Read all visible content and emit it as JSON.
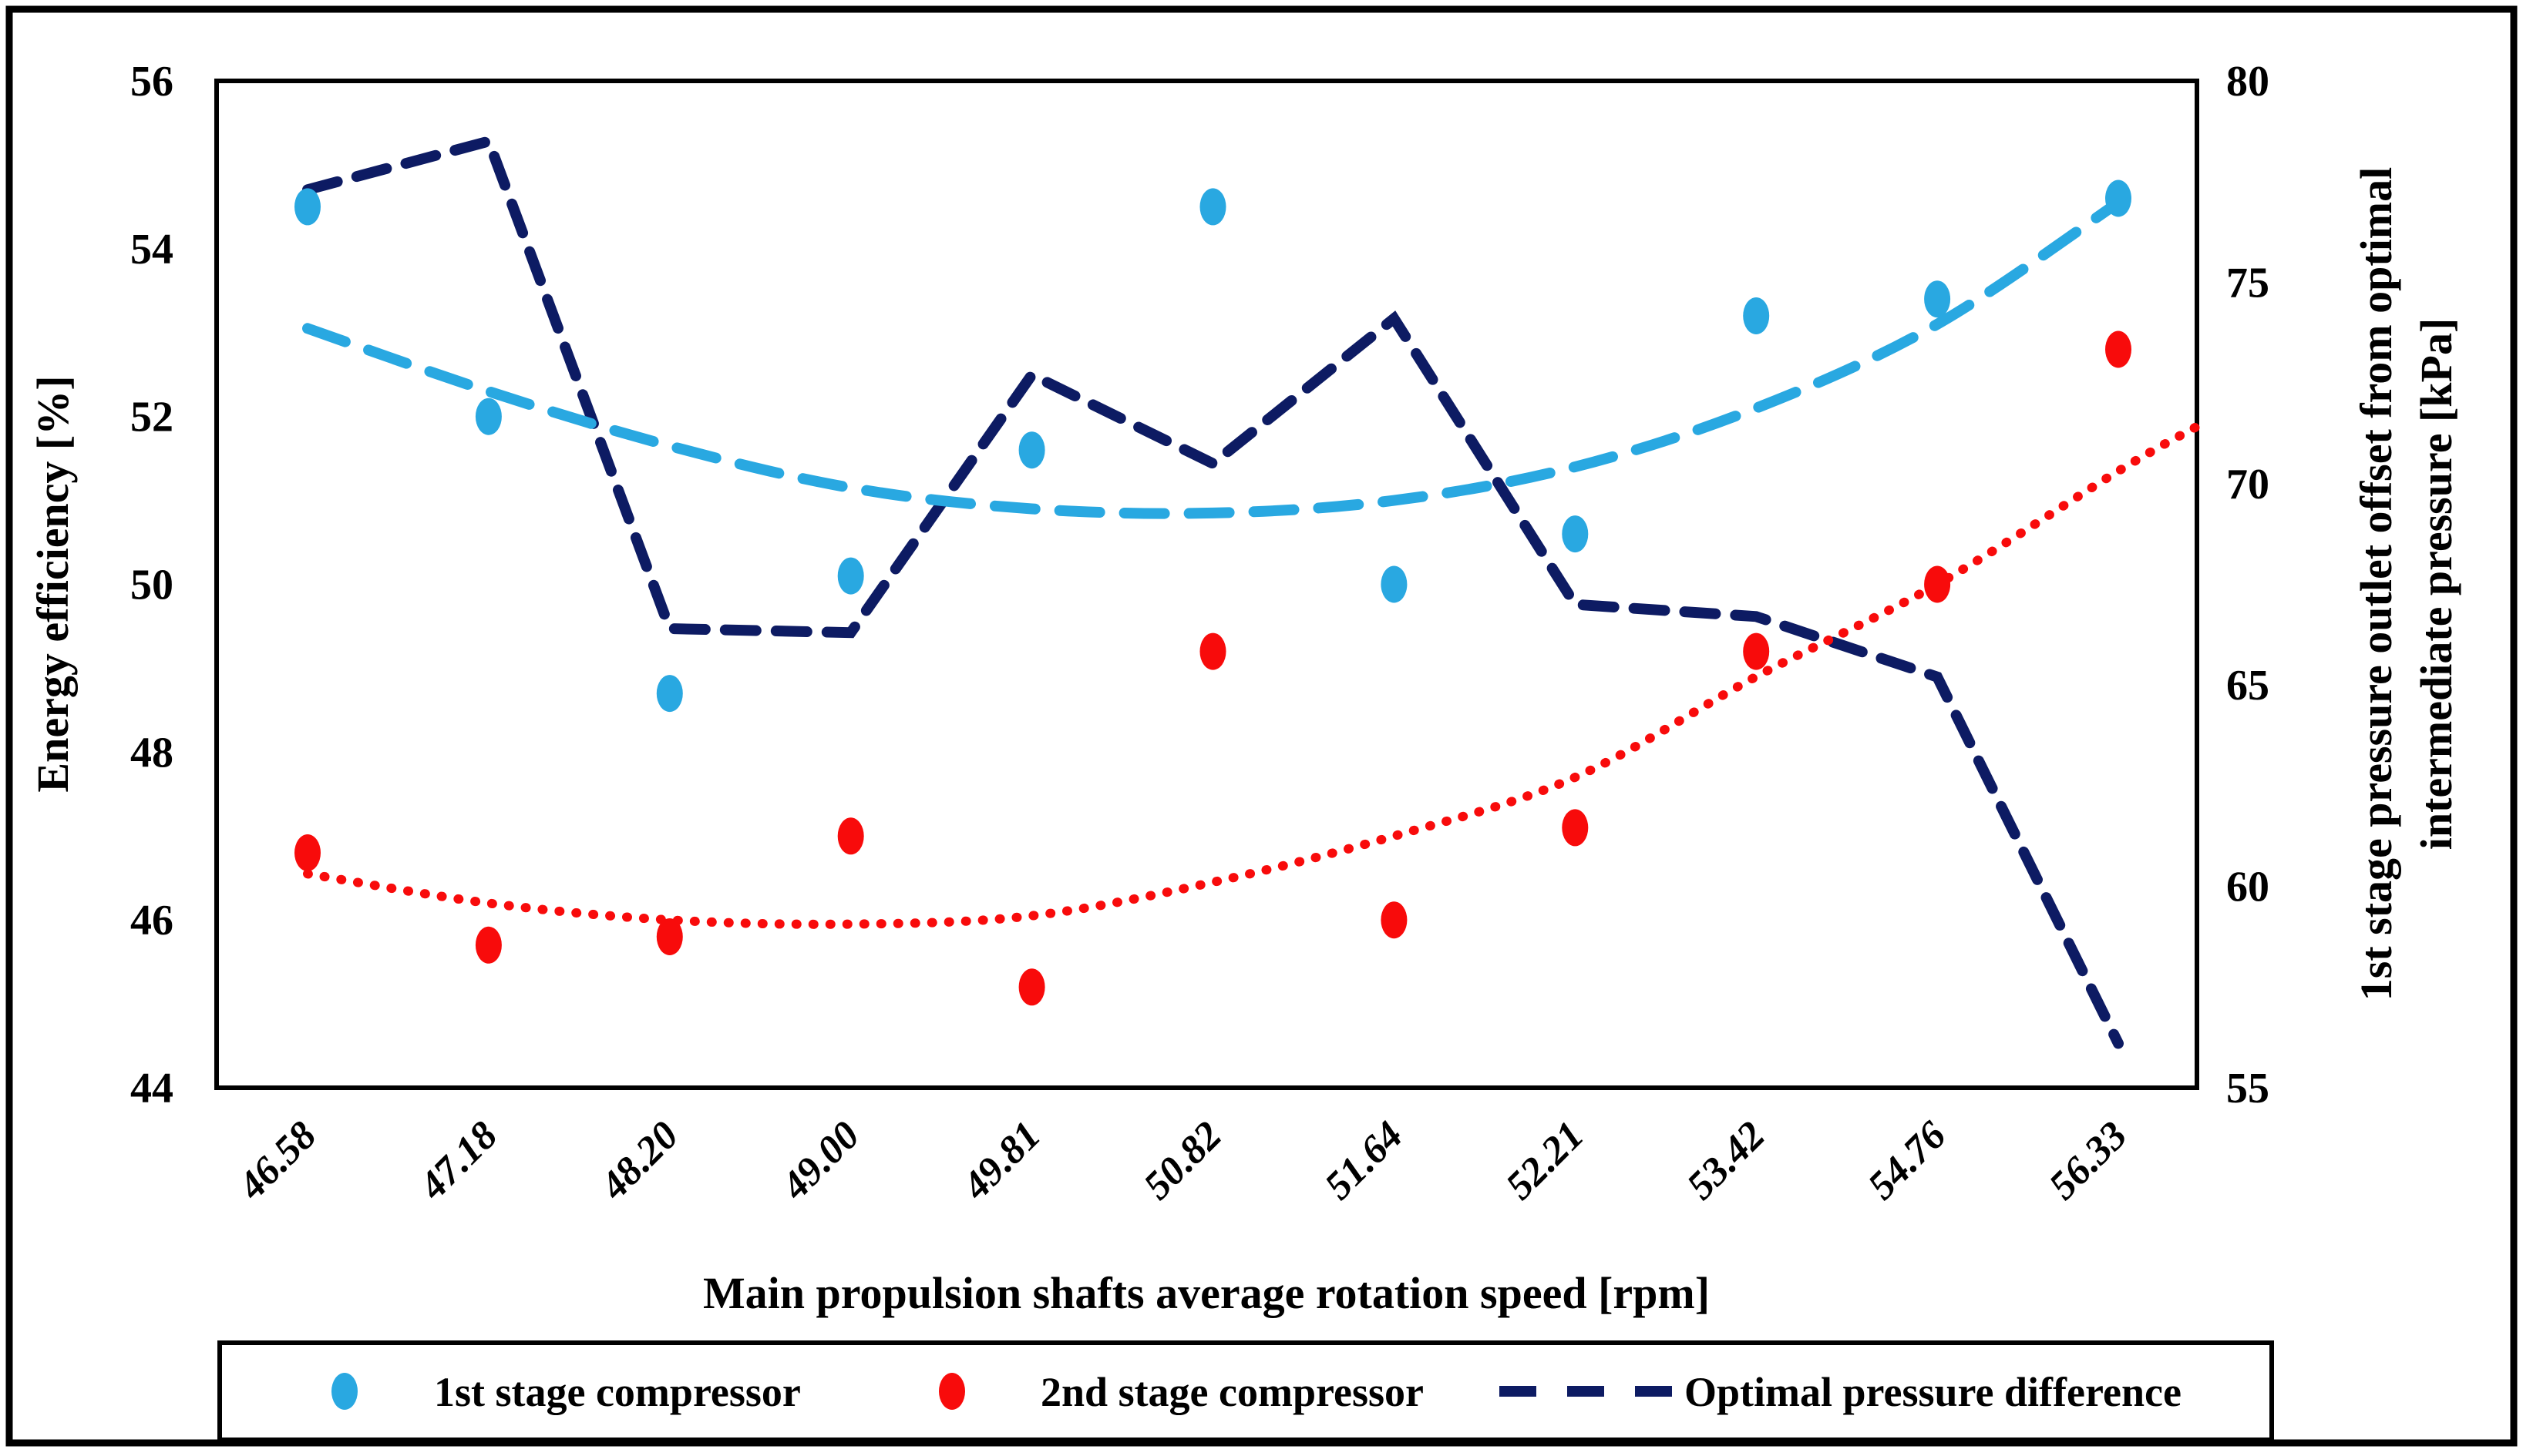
{
  "figure": {
    "background": "#ffffff",
    "border_color": "#000000"
  },
  "chart_data": {
    "type": "scatter",
    "title": "",
    "xlabel": "Main propulsion shafts average rotation speed [rpm]",
    "categories": [
      "46.58",
      "47.18",
      "48.20",
      "49.00",
      "49.81",
      "50.82",
      "51.64",
      "52.21",
      "53.42",
      "54.76",
      "56.33"
    ],
    "left_axis": {
      "label": "Energy efficiency [%]",
      "min": 44,
      "max": 56,
      "ticks": [
        56,
        54,
        52,
        50,
        48,
        46,
        44
      ]
    },
    "right_axis": {
      "label_line1": "1st stage pressure outlet offset from optimal",
      "label_line2": "intermediate pressure [kPa]",
      "min": 55,
      "max": 80,
      "ticks": [
        80,
        75,
        70,
        65,
        60,
        55
      ]
    },
    "series": [
      {
        "name": "1st stage compressor",
        "axis": "left",
        "style": "scatter-ellipse",
        "color": "#29a8e1",
        "values": [
          54.5,
          52.0,
          48.7,
          50.1,
          51.6,
          54.5,
          50.0,
          50.6,
          53.2,
          53.4,
          54.6
        ]
      },
      {
        "name": "2nd stage compressor",
        "axis": "left",
        "style": "scatter-ellipse",
        "color": "#f80b0b",
        "values": [
          46.8,
          45.7,
          45.8,
          47.0,
          45.2,
          49.2,
          46.0,
          47.1,
          49.2,
          50.0,
          52.8
        ]
      },
      {
        "name": "Optimal pressure difference",
        "axis": "right",
        "style": "dashed-polyline",
        "color": "#0d1b63",
        "values": [
          77.3,
          78.5,
          66.4,
          66.3,
          72.7,
          70.5,
          74.1,
          67.0,
          66.7,
          65.2,
          56.1
        ]
      }
    ],
    "trendlines": [
      {
        "for": "1st stage compressor",
        "style": "long-dash",
        "color": "#29a8e1",
        "points": [
          [
            0,
            53.05
          ],
          [
            1,
            52.3
          ],
          [
            2,
            51.65
          ],
          [
            3,
            51.15
          ],
          [
            4,
            50.9
          ],
          [
            5,
            50.85
          ],
          [
            6,
            51.0
          ],
          [
            7,
            51.4
          ],
          [
            8,
            52.1
          ],
          [
            9,
            53.1
          ],
          [
            10,
            54.55
          ]
        ]
      },
      {
        "for": "2nd stage compressor",
        "style": "dotted",
        "color": "#f80b0b",
        "points": [
          [
            0,
            46.55
          ],
          [
            1,
            46.2
          ],
          [
            2,
            46.0
          ],
          [
            3,
            45.95
          ],
          [
            4,
            46.05
          ],
          [
            5,
            46.45
          ],
          [
            6,
            47.0
          ],
          [
            7,
            47.7
          ],
          [
            8,
            48.9
          ],
          [
            9,
            50.0
          ],
          [
            10,
            51.35
          ],
          [
            10.45,
            51.9
          ]
        ]
      }
    ],
    "legend": {
      "position": "bottom",
      "entries": [
        {
          "label": "1st stage compressor",
          "marker": "ellipse",
          "color": "#29a8e1"
        },
        {
          "label": "2nd stage compressor",
          "marker": "ellipse",
          "color": "#f80b0b"
        },
        {
          "label": "Optimal pressure difference",
          "marker": "dash",
          "color": "#0d1b63"
        }
      ]
    },
    "grid": false
  }
}
